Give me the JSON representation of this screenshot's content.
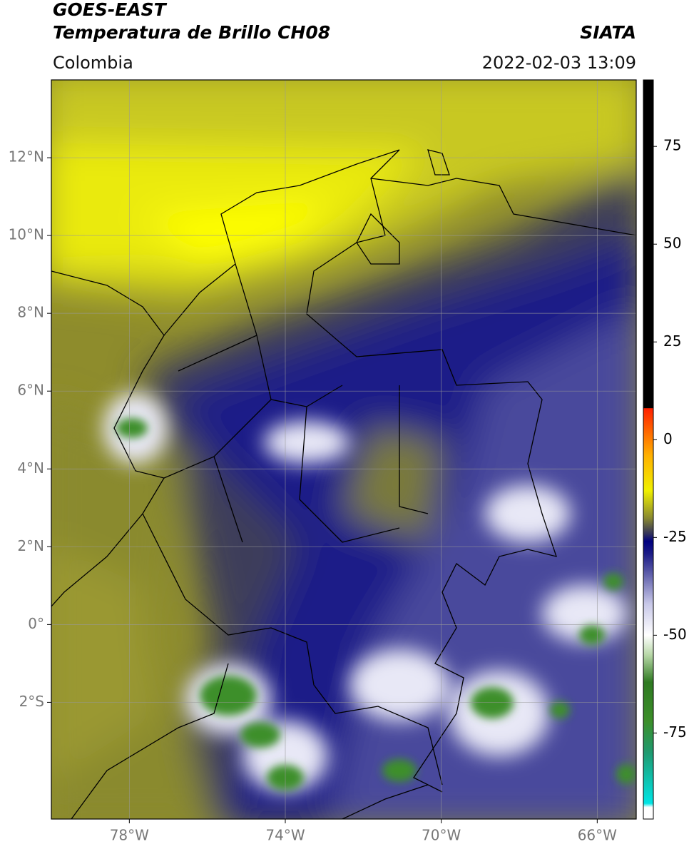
{
  "header": {
    "title": "GOES-EAST",
    "subtitle": "Temperatura de Brillo CH08",
    "region": "Colombia",
    "source": "SIATA",
    "datetime": "2022-02-03 13:09"
  },
  "map": {
    "lonlim": [
      -80,
      -65
    ],
    "latlim": [
      -5,
      14
    ],
    "lon_ticks": [
      {
        "value": -78,
        "label": "78°W"
      },
      {
        "value": -74,
        "label": "74°W"
      },
      {
        "value": -70,
        "label": "70°W"
      },
      {
        "value": -66,
        "label": "66°W"
      }
    ],
    "lat_ticks": [
      {
        "value": 12,
        "label": "12°N"
      },
      {
        "value": 10,
        "label": "10°N"
      },
      {
        "value": 8,
        "label": "8°N"
      },
      {
        "value": 6,
        "label": "6°N"
      },
      {
        "value": 4,
        "label": "4°N"
      },
      {
        "value": 2,
        "label": "2°N"
      },
      {
        "value": 0,
        "label": "0°"
      },
      {
        "value": -2,
        "label": "2°S"
      }
    ],
    "grid": true
  },
  "colorbar": {
    "lim": [
      -97,
      92
    ],
    "ticks": [
      75,
      50,
      25,
      0,
      -25,
      -50,
      -75
    ],
    "colormap": [
      {
        "value": -97,
        "color": "#ffffff"
      },
      {
        "value": -94,
        "color": "#ffffff"
      },
      {
        "value": -93,
        "color": "#00e5e5"
      },
      {
        "value": -80,
        "color": "#1f9a70"
      },
      {
        "value": -72,
        "color": "#3c8f2a"
      },
      {
        "value": -62,
        "color": "#2f7a22"
      },
      {
        "value": -55,
        "color": "#b8d8a8"
      },
      {
        "value": -50,
        "color": "#ffffff"
      },
      {
        "value": -42,
        "color": "#c8c8e8"
      },
      {
        "value": -34,
        "color": "#5a5aa8"
      },
      {
        "value": -29,
        "color": "#1a1a86"
      },
      {
        "value": -26,
        "color": "#000080"
      },
      {
        "value": -24,
        "color": "#33335a"
      },
      {
        "value": -20,
        "color": "#8a8a30"
      },
      {
        "value": -13,
        "color": "#f0f000"
      },
      {
        "value": -4,
        "color": "#ffb000"
      },
      {
        "value": 8,
        "color": "#ff2000"
      },
      {
        "value": 8.1,
        "color": "#000000"
      },
      {
        "value": 92,
        "color": "#000000"
      }
    ]
  }
}
